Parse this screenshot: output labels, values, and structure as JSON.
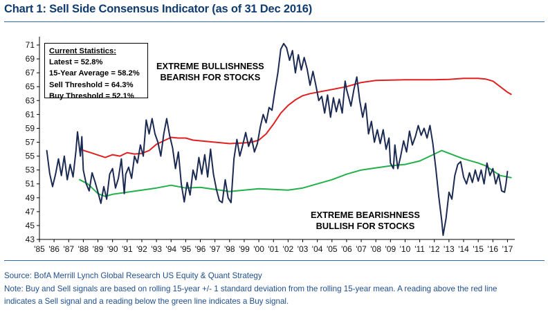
{
  "chart_data": {
    "type": "line",
    "title": "Chart 1: Sell Side Consensus Indicator (as of 31 Dec 2016)",
    "xlabel": "",
    "ylabel": "",
    "ylim": [
      43,
      72
    ],
    "xlim": [
      1985,
      2017.5
    ],
    "y_ticks": [
      "43",
      "45",
      "47",
      "49",
      "51",
      "53",
      "55",
      "57",
      "59",
      "61",
      "63",
      "65",
      "67",
      "69",
      "71"
    ],
    "x_ticks": [
      "'85",
      "'86",
      "'87",
      "'88",
      "'89",
      "'90",
      "'91",
      "'92",
      "'93",
      "'94",
      "'95",
      "'96",
      "'97",
      "'98",
      "'99",
      "'00",
      "'01",
      "'02",
      "'03",
      "'04",
      "'05",
      "'06",
      "'07",
      "'08",
      "'09",
      "'10",
      "'11",
      "'12",
      "'13",
      "'14",
      "'15",
      "'16",
      "'17"
    ],
    "grid": false,
    "colors": {
      "indicator": "#1a2a52",
      "sell": "#e02020",
      "buy": "#22b04a",
      "axis": "#000000",
      "title": "#0f3b6e",
      "footnote": "#1f4e8c",
      "rule": "#2e68b0"
    },
    "series": [
      {
        "name": "Sell Side Consensus Indicator",
        "points": [
          [
            1985.5,
            55.8
          ],
          [
            1985.7,
            52.5
          ],
          [
            1985.9,
            50.6
          ],
          [
            1986.1,
            52.4
          ],
          [
            1986.3,
            54.6
          ],
          [
            1986.5,
            52.2
          ],
          [
            1986.7,
            55.0
          ],
          [
            1986.9,
            51.6
          ],
          [
            1987.1,
            53.8
          ],
          [
            1987.3,
            52.0
          ],
          [
            1987.5,
            55.8
          ],
          [
            1987.6,
            58.5
          ],
          [
            1987.8,
            55.0
          ],
          [
            1987.9,
            57.8
          ],
          [
            1988.0,
            53.0
          ],
          [
            1988.2,
            51.0
          ],
          [
            1988.4,
            50.0
          ],
          [
            1988.6,
            52.6
          ],
          [
            1988.8,
            51.3
          ],
          [
            1989.0,
            49.8
          ],
          [
            1989.2,
            48.2
          ],
          [
            1989.4,
            50.6
          ],
          [
            1989.6,
            48.8
          ],
          [
            1989.8,
            52.4
          ],
          [
            1990.0,
            53.2
          ],
          [
            1990.2,
            50.4
          ],
          [
            1990.4,
            51.8
          ],
          [
            1990.6,
            54.6
          ],
          [
            1990.8,
            49.6
          ],
          [
            1990.9,
            52.4
          ],
          [
            1991.1,
            53.4
          ],
          [
            1991.3,
            51.8
          ],
          [
            1991.5,
            55.0
          ],
          [
            1991.7,
            54.0
          ],
          [
            1991.9,
            56.6
          ],
          [
            1992.1,
            55.0
          ],
          [
            1992.3,
            60.2
          ],
          [
            1992.5,
            58.2
          ],
          [
            1992.7,
            60.4
          ],
          [
            1992.9,
            58.2
          ],
          [
            1993.1,
            57.0
          ],
          [
            1993.3,
            55.0
          ],
          [
            1993.5,
            58.2
          ],
          [
            1993.7,
            60.4
          ],
          [
            1993.9,
            58.0
          ],
          [
            1994.1,
            56.2
          ],
          [
            1994.3,
            53.2
          ],
          [
            1994.5,
            55.6
          ],
          [
            1994.7,
            51.0
          ],
          [
            1994.9,
            48.4
          ],
          [
            1995.1,
            51.2
          ],
          [
            1995.3,
            49.4
          ],
          [
            1995.5,
            53.0
          ],
          [
            1995.7,
            51.6
          ],
          [
            1995.9,
            54.8
          ],
          [
            1996.1,
            52.4
          ],
          [
            1996.3,
            55.2
          ],
          [
            1996.5,
            52.0
          ],
          [
            1996.7,
            56.0
          ],
          [
            1996.9,
            52.4
          ],
          [
            1997.1,
            50.2
          ],
          [
            1997.3,
            48.6
          ],
          [
            1997.5,
            48.3
          ],
          [
            1997.7,
            51.6
          ],
          [
            1997.9,
            49.0
          ],
          [
            1998.1,
            48.3
          ],
          [
            1998.3,
            54.6
          ],
          [
            1998.5,
            57.4
          ],
          [
            1998.7,
            55.0
          ],
          [
            1998.9,
            56.6
          ],
          [
            1999.1,
            58.4
          ],
          [
            1999.3,
            56.4
          ],
          [
            1999.5,
            57.6
          ],
          [
            1999.7,
            55.6
          ],
          [
            1999.9,
            56.8
          ],
          [
            2000.1,
            59.2
          ],
          [
            2000.3,
            61.0
          ],
          [
            2000.5,
            59.8
          ],
          [
            2000.7,
            62.0
          ],
          [
            2000.9,
            61.6
          ],
          [
            2001.1,
            64.4
          ],
          [
            2001.3,
            67.0
          ],
          [
            2001.5,
            70.4
          ],
          [
            2001.7,
            71.2
          ],
          [
            2001.9,
            70.6
          ],
          [
            2002.1,
            68.8
          ],
          [
            2002.3,
            70.2
          ],
          [
            2002.5,
            67.0
          ],
          [
            2002.7,
            69.6
          ],
          [
            2002.9,
            67.4
          ],
          [
            2003.1,
            69.2
          ],
          [
            2003.3,
            67.6
          ],
          [
            2003.5,
            65.2
          ],
          [
            2003.7,
            67.2
          ],
          [
            2003.9,
            65.2
          ],
          [
            2004.1,
            63.0
          ],
          [
            2004.3,
            63.6
          ],
          [
            2004.5,
            61.2
          ],
          [
            2004.7,
            63.8
          ],
          [
            2004.9,
            60.6
          ],
          [
            2005.1,
            63.4
          ],
          [
            2005.3,
            61.4
          ],
          [
            2005.5,
            63.2
          ],
          [
            2005.7,
            61.2
          ],
          [
            2005.9,
            65.8
          ],
          [
            2006.0,
            64.6
          ],
          [
            2006.3,
            62.2
          ],
          [
            2006.5,
            64.6
          ],
          [
            2006.7,
            66.4
          ],
          [
            2006.9,
            63.0
          ],
          [
            2007.1,
            60.6
          ],
          [
            2007.3,
            62.6
          ],
          [
            2007.5,
            58.2
          ],
          [
            2007.7,
            60.0
          ],
          [
            2007.9,
            57.0
          ],
          [
            2008.1,
            58.8
          ],
          [
            2008.3,
            56.8
          ],
          [
            2008.5,
            58.8
          ],
          [
            2008.7,
            56.0
          ],
          [
            2008.9,
            57.6
          ],
          [
            2009.0,
            54.0
          ],
          [
            2009.2,
            53.2
          ],
          [
            2009.3,
            56.6
          ],
          [
            2009.5,
            53.2
          ],
          [
            2009.7,
            55.0
          ],
          [
            2009.9,
            57.2
          ],
          [
            2010.1,
            55.6
          ],
          [
            2010.3,
            58.6
          ],
          [
            2010.5,
            56.6
          ],
          [
            2010.7,
            57.8
          ],
          [
            2010.9,
            59.4
          ],
          [
            2011.1,
            58.0
          ],
          [
            2011.3,
            59.0
          ],
          [
            2011.5,
            57.6
          ],
          [
            2011.7,
            59.4
          ],
          [
            2011.9,
            56.8
          ],
          [
            2012.1,
            53.2
          ],
          [
            2012.3,
            49.2
          ],
          [
            2012.5,
            45.8
          ],
          [
            2012.6,
            43.6
          ],
          [
            2012.8,
            46.0
          ],
          [
            2013.0,
            49.8
          ],
          [
            2013.2,
            48.8
          ],
          [
            2013.4,
            52.2
          ],
          [
            2013.6,
            53.8
          ],
          [
            2013.8,
            54.2
          ],
          [
            2014.0,
            52.0
          ],
          [
            2014.2,
            51.0
          ],
          [
            2014.4,
            52.6
          ],
          [
            2014.6,
            51.2
          ],
          [
            2014.8,
            53.0
          ],
          [
            2015.0,
            51.4
          ],
          [
            2015.2,
            53.0
          ],
          [
            2015.4,
            51.0
          ],
          [
            2015.6,
            54.0
          ],
          [
            2015.8,
            52.2
          ],
          [
            2016.0,
            53.2
          ],
          [
            2016.2,
            51.0
          ],
          [
            2016.4,
            52.4
          ],
          [
            2016.6,
            50.0
          ],
          [
            2016.8,
            49.8
          ],
          [
            2016.9,
            51.0
          ],
          [
            2017.0,
            52.8
          ]
        ]
      },
      {
        "name": "Sell Threshold (15-yr mean + 1 SD)",
        "points": [
          [
            1987.75,
            56.0
          ],
          [
            1988.5,
            55.5
          ],
          [
            1989.5,
            54.8
          ],
          [
            1990.0,
            55.2
          ],
          [
            1990.5,
            55.0
          ],
          [
            1991.0,
            55.5
          ],
          [
            1991.5,
            55.3
          ],
          [
            1992.0,
            55.4
          ],
          [
            1992.5,
            55.8
          ],
          [
            1993.0,
            56.7
          ],
          [
            1993.5,
            57.2
          ],
          [
            1994.0,
            57.7
          ],
          [
            1994.5,
            57.6
          ],
          [
            1995.0,
            57.6
          ],
          [
            1995.5,
            57.3
          ],
          [
            1996.0,
            57.2
          ],
          [
            1997.0,
            57.0
          ],
          [
            1998.0,
            56.8
          ],
          [
            1999.0,
            56.9
          ],
          [
            1999.5,
            57.0
          ],
          [
            2000.0,
            57.3
          ],
          [
            2000.5,
            58.2
          ],
          [
            2001.0,
            59.6
          ],
          [
            2001.5,
            61.2
          ],
          [
            2002.0,
            62.3
          ],
          [
            2002.5,
            63.1
          ],
          [
            2003.0,
            63.7
          ],
          [
            2003.5,
            64.0
          ],
          [
            2004.0,
            64.2
          ],
          [
            2005.0,
            64.6
          ],
          [
            2006.0,
            65.0
          ],
          [
            2007.0,
            65.6
          ],
          [
            2008.0,
            65.9
          ],
          [
            2009.0,
            65.95
          ],
          [
            2010.0,
            66.0
          ],
          [
            2011.0,
            66.0
          ],
          [
            2012.0,
            66.0
          ],
          [
            2013.0,
            66.05
          ],
          [
            2014.0,
            66.2
          ],
          [
            2015.0,
            66.2
          ],
          [
            2015.5,
            66.1
          ],
          [
            2016.0,
            65.8
          ],
          [
            2016.5,
            65.0
          ],
          [
            2017.0,
            64.2
          ],
          [
            2017.25,
            63.9
          ]
        ]
      },
      {
        "name": "Buy Threshold (15-yr mean - 1 SD)",
        "points": [
          [
            1987.75,
            51.6
          ],
          [
            1988.3,
            51.0
          ],
          [
            1989.0,
            49.6
          ],
          [
            1989.5,
            49.2
          ],
          [
            1990.0,
            49.5
          ],
          [
            1991.0,
            49.8
          ],
          [
            1992.0,
            50.1
          ],
          [
            1993.0,
            50.4
          ],
          [
            1994.0,
            50.8
          ],
          [
            1994.5,
            50.6
          ],
          [
            1995.0,
            50.4
          ],
          [
            1996.0,
            50.5
          ],
          [
            1997.0,
            50.2
          ],
          [
            1998.0,
            49.9
          ],
          [
            1999.0,
            50.1
          ],
          [
            2000.0,
            50.3
          ],
          [
            2001.0,
            50.2
          ],
          [
            2002.0,
            50.1
          ],
          [
            2003.0,
            50.4
          ],
          [
            2004.0,
            51.0
          ],
          [
            2005.0,
            51.6
          ],
          [
            2006.0,
            52.4
          ],
          [
            2007.0,
            53.0
          ],
          [
            2008.0,
            53.3
          ],
          [
            2009.0,
            53.6
          ],
          [
            2010.0,
            53.8
          ],
          [
            2011.0,
            54.3
          ],
          [
            2011.5,
            54.8
          ],
          [
            2012.0,
            55.3
          ],
          [
            2012.5,
            55.8
          ],
          [
            2013.0,
            55.4
          ],
          [
            2013.5,
            55.0
          ],
          [
            2014.0,
            54.6
          ],
          [
            2015.0,
            54.0
          ],
          [
            2015.5,
            53.6
          ],
          [
            2016.0,
            52.9
          ],
          [
            2016.5,
            52.2
          ],
          [
            2017.0,
            52.0
          ],
          [
            2017.25,
            51.9
          ]
        ]
      }
    ]
  },
  "stats_box": {
    "heading": "Current Statistics:",
    "lines": [
      "Latest = 52.8%",
      "15-Year Average = 58.2%",
      "Sell Threshold = 64.3%",
      "Buy Threshold = 52.1%"
    ]
  },
  "annotations": {
    "bullish_line1": "EXTREME BULLISHNESS",
    "bullish_line2": "BEARISH FOR STOCKS",
    "bearish_line1": "EXTREME BEARISHNESS",
    "bearish_line2": "BULLISH FOR STOCKS"
  },
  "footnotes": {
    "source": "Source: BofA Merrill Lynch Global Research US Equity & Quant Strategy",
    "note1": "Note: Buy and Sell signals are based on rolling 15-year +/- 1 standard deviation from the rolling 15-year mean. A reading above the red line",
    "note2": "indicates a Sell signal and a reading below the green line indicates a Buy signal."
  }
}
